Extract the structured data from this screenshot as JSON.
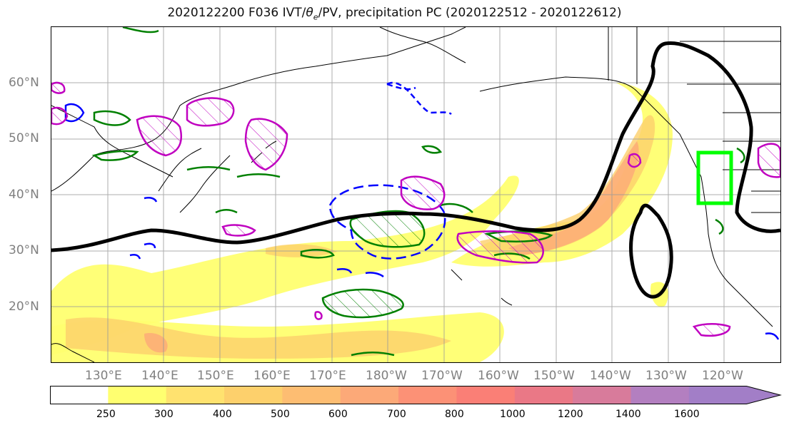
{
  "title": {
    "prefix": "2020122200 F036 IVT/",
    "symbol": "θ",
    "subscript": "e",
    "suffix": "/PV, precipitation PC (2020122512 - 2020122612)"
  },
  "map": {
    "projection": "equirectangular",
    "lat_labels": [
      "60°N",
      "50°N",
      "40°N",
      "30°N",
      "20°N"
    ],
    "lon_labels": [
      "130°E",
      "140°E",
      "150°E",
      "160°E",
      "170°E",
      "180°W",
      "170°W",
      "160°W",
      "150°W",
      "140°W",
      "130°W",
      "120°W"
    ],
    "gridlines": true,
    "box_color": "#00ff00"
  },
  "colorbar": {
    "ticks": [
      "250",
      "300",
      "400",
      "500",
      "600",
      "700",
      "800",
      "1000",
      "1200",
      "1400",
      "1600"
    ],
    "colors": [
      "#ffffff",
      "#ffff70",
      "#ffe26f",
      "#fdd06c",
      "#fdbd72",
      "#fca978",
      "#fc9176",
      "#fa7f76",
      "#ea7886",
      "#d87b9b",
      "#b37fc0",
      "#a27ec7"
    ],
    "extend": "max"
  },
  "contour_colors": {
    "ivt_outline": "#000000",
    "pv_positive": "#008000",
    "pv_negative": "#0000ff",
    "theta_e": "#c000c0"
  }
}
